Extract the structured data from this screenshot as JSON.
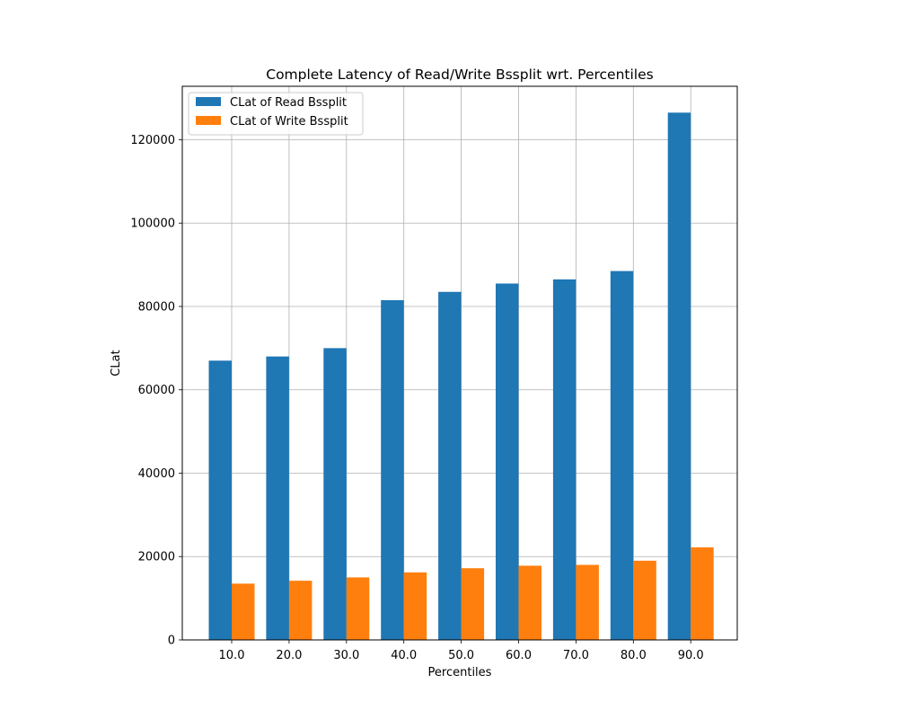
{
  "chart_data": {
    "type": "bar",
    "title": "Complete Latency of Read/Write Bssplit wrt. Percentiles",
    "xlabel": "Percentiles",
    "ylabel": "CLat",
    "categories": [
      "10.0",
      "20.0",
      "30.0",
      "40.0",
      "50.0",
      "60.0",
      "70.0",
      "80.0",
      "90.0"
    ],
    "series": [
      {
        "name": "CLat of Read Bssplit",
        "color": "#1f77b4",
        "values": [
          67000,
          68000,
          70000,
          81500,
          83500,
          85500,
          86500,
          88500,
          126500
        ]
      },
      {
        "name": "CLat of Write Bssplit",
        "color": "#ff7f0e",
        "values": [
          13500,
          14200,
          15000,
          16200,
          17200,
          17800,
          18000,
          19000,
          22200
        ]
      }
    ],
    "yticks": [
      0,
      20000,
      40000,
      60000,
      80000,
      100000,
      120000
    ],
    "ylim": [
      0,
      132825
    ],
    "grid": true,
    "legend": "upper-left"
  }
}
